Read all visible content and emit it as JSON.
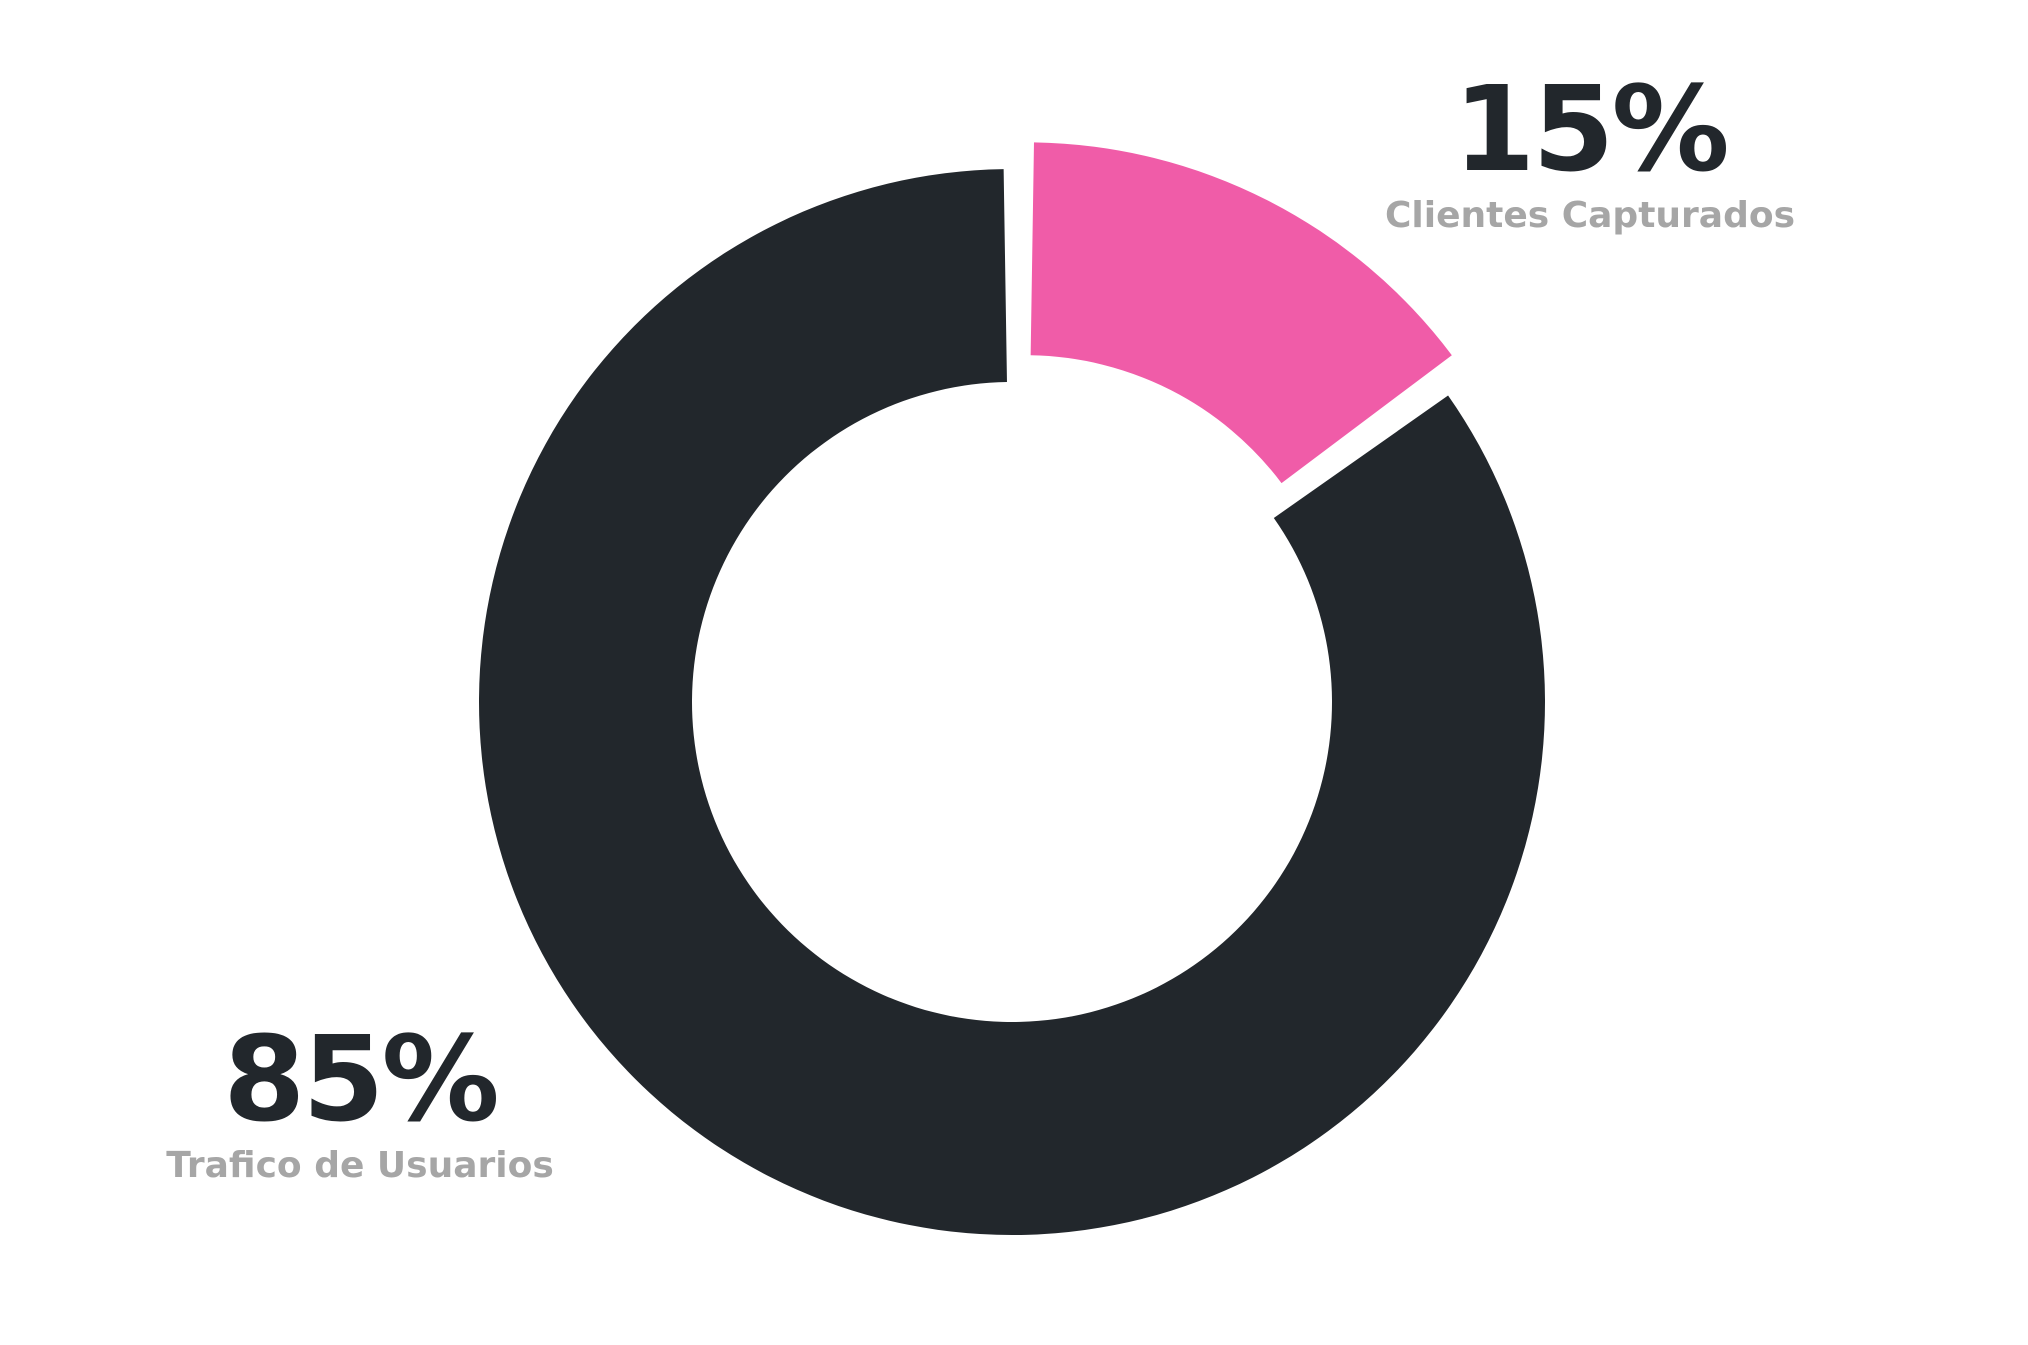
{
  "chart_data": {
    "type": "pie",
    "donut": true,
    "title": "",
    "slices": [
      {
        "label": "Clientes Capturados",
        "value": 15,
        "display_value": "15%",
        "color": "#F05CA8",
        "exploded": true
      },
      {
        "label": "Trafico de Usuarios",
        "value": 85,
        "display_value": "85%",
        "color": "#22272C",
        "exploded": false
      }
    ],
    "value_color": "#22272C",
    "label_color": "#A6A6A6",
    "legend": "none"
  }
}
